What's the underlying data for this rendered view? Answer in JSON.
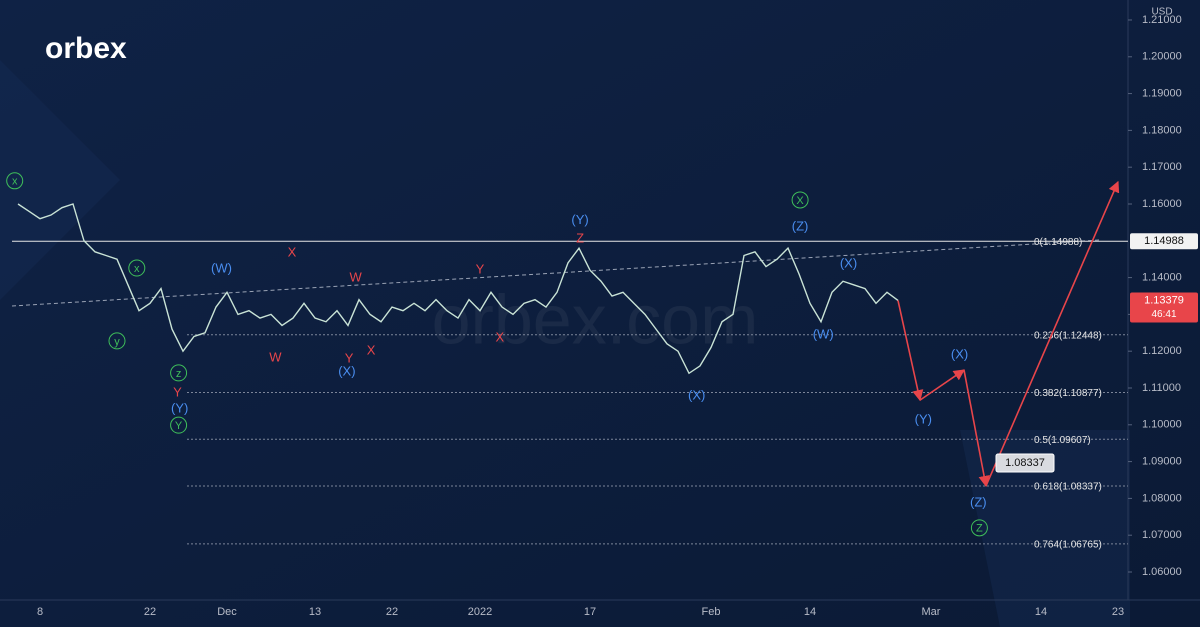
{
  "logo": "orbex",
  "watermark": "orbex.com",
  "currency": "USD",
  "last_price": "1.13379",
  "countdown": "46:41",
  "level_box": "1.14988",
  "target_box": "1.08337",
  "chart_data": {
    "type": "line",
    "categories": [
      null,
      null,
      "8",
      null,
      null,
      null,
      null,
      null,
      null,
      null,
      null,
      null,
      "22",
      null,
      null,
      null,
      null,
      null,
      null,
      "Dec",
      null,
      null,
      null,
      null,
      null,
      null,
      null,
      "13",
      null,
      null,
      null,
      null,
      null,
      null,
      "22",
      null,
      null,
      null,
      null,
      null,
      null,
      null,
      "2022",
      null,
      null,
      null,
      null,
      null,
      null,
      null,
      null,
      null,
      "17",
      null,
      null,
      null,
      null,
      null,
      null,
      null,
      null,
      null,
      null,
      "Feb",
      null,
      null,
      null,
      null,
      null,
      null,
      null,
      null,
      "14",
      null,
      null,
      null,
      null,
      null,
      null,
      null,
      null,
      null,
      null,
      "Mar",
      null,
      null,
      null,
      null,
      null,
      null,
      null,
      null,
      null,
      "14",
      null,
      null,
      null,
      null,
      null,
      null,
      "23",
      null
    ],
    "series": [
      {
        "name": "EURUSD",
        "color": "#c9e3d6",
        "values": [
          1.16,
          1.158,
          1.156,
          1.157,
          1.159,
          1.16,
          1.15,
          1.147,
          1.146,
          1.145,
          1.138,
          1.131,
          1.133,
          1.137,
          1.126,
          1.12,
          1.124,
          1.125,
          1.132,
          1.136,
          1.13,
          1.131,
          1.129,
          1.13,
          1.127,
          1.129,
          1.133,
          1.129,
          1.128,
          1.131,
          1.127,
          1.134,
          1.13,
          1.128,
          1.132,
          1.131,
          1.133,
          1.131,
          1.134,
          1.131,
          1.129,
          1.134,
          1.131,
          1.136,
          1.132,
          1.13,
          1.133,
          1.134,
          1.132,
          1.136,
          1.144,
          1.148,
          1.142,
          1.139,
          1.135,
          1.136,
          1.133,
          1.13,
          1.126,
          1.122,
          1.12,
          1.114,
          1.116,
          1.121,
          1.128,
          1.13,
          1.146,
          1.147,
          1.143,
          1.145,
          1.148,
          1.141,
          1.133,
          1.128,
          1.136,
          1.139,
          1.138,
          1.137,
          1.133,
          1.136,
          1.13379,
          null,
          null,
          null,
          null,
          null,
          null,
          null,
          null,
          null,
          null,
          null,
          null,
          null,
          null,
          null,
          null,
          null,
          null,
          null,
          null,
          null
        ]
      },
      {
        "name": "Forecast",
        "color": "#e8454a",
        "values": [
          null,
          null,
          null,
          null,
          null,
          null,
          null,
          null,
          null,
          null,
          null,
          null,
          null,
          null,
          null,
          null,
          null,
          null,
          null,
          null,
          null,
          null,
          null,
          null,
          null,
          null,
          null,
          null,
          null,
          null,
          null,
          null,
          null,
          null,
          null,
          null,
          null,
          null,
          null,
          null,
          null,
          null,
          null,
          null,
          null,
          null,
          null,
          null,
          null,
          null,
          null,
          null,
          null,
          null,
          null,
          null,
          null,
          null,
          null,
          null,
          null,
          null,
          null,
          null,
          null,
          null,
          null,
          null,
          null,
          null,
          null,
          null,
          null,
          null,
          null,
          null,
          null,
          null,
          null,
          null,
          1.13379,
          null,
          1.1067,
          null,
          null,
          null,
          1.1149,
          null,
          1.08337,
          null,
          null,
          null,
          null,
          null,
          null,
          null,
          null,
          null,
          null,
          null,
          1.166,
          null
        ]
      }
    ],
    "ylim": [
      1.05239,
      1.21543
    ],
    "yticks": [
      {
        "value": 1.06,
        "label": "1.06000"
      },
      {
        "value": 1.07,
        "label": "1.07000"
      },
      {
        "value": 1.08,
        "label": "1.08000"
      },
      {
        "value": 1.09,
        "label": "1.09000"
      },
      {
        "value": 1.1,
        "label": "1.10000"
      },
      {
        "value": 1.11,
        "label": "1.11000"
      },
      {
        "value": 1.12,
        "label": "1.12000"
      },
      {
        "value": 1.13,
        "label": "1.13000"
      },
      {
        "value": 1.14,
        "label": "1.14000"
      },
      {
        "value": 1.16,
        "label": "1.16000"
      },
      {
        "value": 1.17,
        "label": "1.17000"
      },
      {
        "value": 1.18,
        "label": "1.18000"
      },
      {
        "value": 1.19,
        "label": "1.19000"
      },
      {
        "value": 1.2,
        "label": "1.20000"
      },
      {
        "value": 1.21,
        "label": "1.21000"
      }
    ],
    "level": 1.14988,
    "fib_levels": [
      {
        "value": 1.14988,
        "label": "0(1.14988)"
      },
      {
        "value": 1.12448,
        "label": "0.236(1.12448)"
      },
      {
        "value": 1.10877,
        "label": "0.382(1.10877)"
      },
      {
        "value": 1.09607,
        "label": "0.5(1.09607)"
      },
      {
        "value": 1.08337,
        "label": "0.618(1.08337)"
      },
      {
        "value": 1.06765,
        "label": "0.764(1.06765)"
      }
    ],
    "wave_labels": [
      {
        "text": "x",
        "color": "#3fbf5a",
        "circled": true,
        "index": -0.3,
        "price": 1.1663
      },
      {
        "text": "x",
        "color": "#3fbf5a",
        "circled": true,
        "index": 10.8,
        "price": 1.1426
      },
      {
        "text": "y",
        "color": "#3fbf5a",
        "circled": true,
        "index": 9,
        "price": 1.1228
      },
      {
        "text": "z",
        "color": "#3fbf5a",
        "circled": true,
        "index": 14.6,
        "price": 1.1141
      },
      {
        "text": "Y",
        "color": "#3fbf5a",
        "circled": true,
        "index": 14.6,
        "price": 1.0999
      },
      {
        "text": "X",
        "color": "#3fbf5a",
        "circled": true,
        "index": 71.1,
        "price": 1.1611
      },
      {
        "text": "Z",
        "color": "#3fbf5a",
        "circled": true,
        "index": 87.4,
        "price": 1.072
      },
      {
        "text": "Y",
        "color": "#e8454a",
        "circled": false,
        "index": 14.5,
        "price": 1.1089
      },
      {
        "text": "W",
        "color": "#e8454a",
        "circled": false,
        "index": 23.4,
        "price": 1.1184
      },
      {
        "text": "X",
        "color": "#e8454a",
        "circled": false,
        "index": 24.9,
        "price": 1.147
      },
      {
        "text": "W",
        "color": "#e8454a",
        "circled": false,
        "index": 30.7,
        "price": 1.1402
      },
      {
        "text": "Y",
        "color": "#e8454a",
        "circled": false,
        "index": 30.1,
        "price": 1.1182
      },
      {
        "text": "X",
        "color": "#e8454a",
        "circled": false,
        "index": 32.1,
        "price": 1.1203
      },
      {
        "text": "Y",
        "color": "#e8454a",
        "circled": false,
        "index": 42,
        "price": 1.1423
      },
      {
        "text": "X",
        "color": "#e8454a",
        "circled": false,
        "index": 43.8,
        "price": 1.1239
      },
      {
        "text": "Z",
        "color": "#e8454a",
        "circled": false,
        "index": 51.1,
        "price": 1.1508
      },
      {
        "text": "(Y)",
        "color": "#4a8ef0",
        "circled": false,
        "index": 14.7,
        "price": 1.1046
      },
      {
        "text": "(W)",
        "color": "#4a8ef0",
        "circled": false,
        "index": 18.5,
        "price": 1.1426
      },
      {
        "text": "(X)",
        "color": "#4a8ef0",
        "circled": false,
        "index": 29.9,
        "price": 1.1146
      },
      {
        "text": "(Y)",
        "color": "#4a8ef0",
        "circled": false,
        "index": 51.1,
        "price": 1.1557
      },
      {
        "text": "(X)",
        "color": "#4a8ef0",
        "circled": false,
        "index": 61.7,
        "price": 1.1081
      },
      {
        "text": "(Z)",
        "color": "#4a8ef0",
        "circled": false,
        "index": 71.1,
        "price": 1.154
      },
      {
        "text": "(X)",
        "color": "#4a8ef0",
        "circled": false,
        "index": 75.5,
        "price": 1.144
      },
      {
        "text": "(W)",
        "color": "#4a8ef0",
        "circled": false,
        "index": 73.2,
        "price": 1.1247
      },
      {
        "text": "(X)",
        "color": "#4a8ef0",
        "circled": false,
        "index": 85.6,
        "price": 1.1192
      },
      {
        "text": "(Y)",
        "color": "#4a8ef0",
        "circled": false,
        "index": 82.3,
        "price": 1.1016
      },
      {
        "text": "(Z)",
        "color": "#4a8ef0",
        "circled": false,
        "index": 87.3,
        "price": 1.079
      }
    ]
  }
}
